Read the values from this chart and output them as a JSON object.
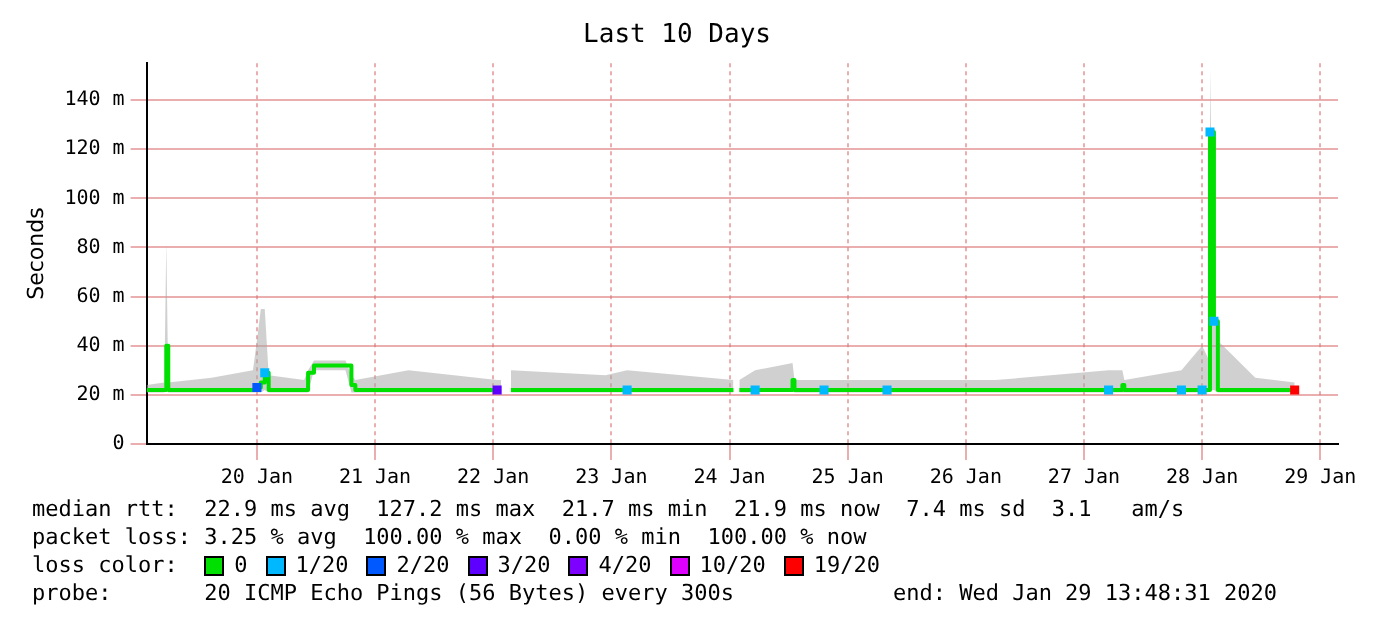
{
  "chart_data": {
    "type": "line",
    "title": "Last 10 Days",
    "ylabel": "Seconds",
    "xlim": [
      "2020-01-19T01:36",
      "2020-01-29T03:36"
    ],
    "xticks": [
      {
        "value": "2020-01-20",
        "label": "20 Jan"
      },
      {
        "value": "2020-01-21",
        "label": "21 Jan"
      },
      {
        "value": "2020-01-22",
        "label": "22 Jan"
      },
      {
        "value": "2020-01-23",
        "label": "23 Jan"
      },
      {
        "value": "2020-01-24",
        "label": "24 Jan"
      },
      {
        "value": "2020-01-25",
        "label": "25 Jan"
      },
      {
        "value": "2020-01-26",
        "label": "26 Jan"
      },
      {
        "value": "2020-01-27",
        "label": "27 Jan"
      },
      {
        "value": "2020-01-28",
        "label": "28 Jan"
      },
      {
        "value": "2020-01-29",
        "label": "29 Jan"
      }
    ],
    "ylim": [
      0,
      155
    ],
    "yticks": [
      0,
      {
        "value": 20,
        "label": "20 m"
      },
      {
        "value": 40,
        "label": "40 m"
      },
      {
        "value": 60,
        "label": "60 m"
      },
      {
        "value": 80,
        "label": "80 m"
      },
      {
        "value": 100,
        "label": "100 m"
      },
      {
        "value": 120,
        "label": "120 m"
      },
      {
        "value": 140,
        "label": "140 m"
      }
    ],
    "grid": true,
    "legend": "bottom",
    "legend_title": "loss color:",
    "line_style": "solid",
    "series": [
      {
        "name": "0",
        "color": "#00e000",
        "x": [
          "2020-01-19T01:36",
          "2020-01-19T05:12",
          "2020-01-19T05:36",
          "2020-01-19T06:00",
          "2020-01-19T14:48",
          "2020-01-19T23:12",
          "2020-01-20T00:00",
          "2020-01-20T00:48",
          "2020-01-20T01:36",
          "2020-01-20T02:24",
          "2020-01-20T09:36",
          "2020-01-20T10:24",
          "2020-01-20T11:36",
          "2020-01-20T18:00",
          "2020-01-20T19:12",
          "2020-01-20T20:00",
          "2020-01-21T06:48",
          "2020-01-22T00:48",
          "2020-01-22T01:36",
          "2020-01-22T02:24",
          "2020-01-22T03:36",
          "2020-01-22T22:48",
          "2020-01-23T03:12",
          "2020-01-24T00:48",
          "2020-01-24T01:36",
          "2020-01-24T02:00",
          "2020-01-24T05:12",
          "2020-01-24T12:48",
          "2020-01-24T13:12",
          "2020-01-24T19:12",
          "2020-01-25T08:00",
          "2020-01-26T06:00",
          "2020-01-27T05:00",
          "2020-01-27T07:48",
          "2020-01-27T08:12",
          "2020-01-27T19:48",
          "2020-01-28T00:00",
          "2020-01-28T01:12",
          "2020-01-28T01:36",
          "2020-01-28T02:24",
          "2020-01-28T03:12",
          "2020-01-28T10:48",
          "2020-01-28T18:48"
        ],
        "values": [
          22,
          22,
          40,
          22,
          22,
          22,
          23,
          25,
          29,
          22,
          22,
          29,
          32,
          32,
          24,
          22,
          22,
          22,
          22,
          null,
          22,
          22,
          22,
          22,
          null,
          22,
          22,
          26,
          22,
          22,
          22,
          22,
          22,
          24,
          22,
          22,
          22,
          22,
          127,
          50,
          22,
          22,
          22
        ],
        "lower": [
          21,
          21,
          30,
          21,
          21,
          21,
          21,
          21,
          22,
          21,
          21,
          21,
          30,
          30,
          21,
          21,
          21,
          21,
          21,
          null,
          21,
          21,
          21,
          21,
          null,
          21,
          21,
          22,
          21,
          21,
          21,
          21,
          21,
          21,
          21,
          21,
          21,
          21,
          22,
          22,
          21,
          21,
          21
        ],
        "upper": [
          24,
          25,
          82,
          25,
          27,
          30,
          42,
          55,
          55,
          28,
          26,
          30,
          34,
          34,
          28,
          26,
          30,
          26,
          26,
          null,
          30,
          28,
          30,
          26,
          null,
          26,
          30,
          33,
          26,
          26,
          26,
          26,
          30,
          30,
          26,
          30,
          40,
          35,
          153,
          60,
          42,
          27,
          25
        ]
      },
      {
        "name": "1/20",
        "type": "scatter",
        "marker": "square",
        "color": "#00b8ff",
        "x": [
          "2020-01-20T01:36",
          "2020-01-23T03:12",
          "2020-01-24T05:12",
          "2020-01-24T19:12",
          "2020-01-25T08:00",
          "2020-01-27T05:00",
          "2020-01-27T19:48",
          "2020-01-28T00:00",
          "2020-01-28T01:36",
          "2020-01-28T02:24"
        ],
        "values": [
          29,
          22,
          22,
          22,
          22,
          22,
          22,
          22,
          127,
          50
        ]
      },
      {
        "name": "2/20",
        "type": "scatter",
        "marker": "square",
        "color": "#0059ff",
        "x": [
          "2020-01-20T00:00"
        ],
        "values": [
          23
        ]
      },
      {
        "name": "3/20",
        "type": "scatter",
        "marker": "square",
        "color": "#5e00ff",
        "x": [
          "2020-01-22T00:48"
        ],
        "values": [
          22
        ]
      },
      {
        "name": "4/20",
        "type": "scatter",
        "color": "#7e00ff"
      },
      {
        "name": "10/20",
        "type": "scatter",
        "color": "#dd00ff"
      },
      {
        "name": "19/20",
        "type": "scatter",
        "marker": "square",
        "color": "#ff0000",
        "x": [
          "2020-01-28T18:48"
        ],
        "values": [
          22
        ]
      }
    ],
    "annotations": [
      "median rtt:  22.9 ms avg  127.2 ms max  21.7 ms min  21.9 ms now  7.4 ms sd  3.1   am/s",
      "packet loss: 3.25 % avg  100.00 % max  0.00 % min  100.00 % now",
      "probe:       20 ICMP Echo Pings (56 Bytes) every 300s            end: Wed Jan 29 13:48:31 2020"
    ]
  }
}
